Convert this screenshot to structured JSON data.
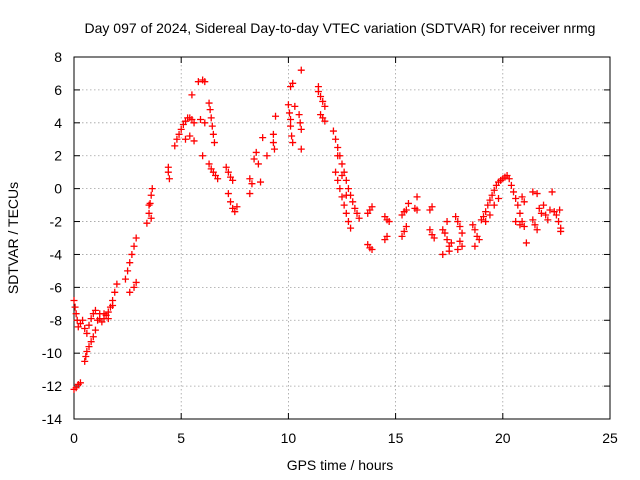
{
  "chart_data": {
    "type": "scatter",
    "title": "Day 097 of 2024, Sidereal Day-to-day VTEC variation (SDTVAR) for receiver nrmg",
    "xlabel": "GPS time / hours",
    "ylabel": "SDTVAR / TECUs",
    "xlim": [
      0,
      25
    ],
    "ylim": [
      -14,
      8
    ],
    "xticks": [
      0,
      5,
      10,
      15,
      20,
      25
    ],
    "yticks": [
      -14,
      -12,
      -10,
      -8,
      -6,
      -4,
      -2,
      0,
      2,
      4,
      6,
      8
    ],
    "grid": true,
    "marker": "+",
    "color": "#ff0000",
    "series": [
      {
        "name": "SDTVAR",
        "points": [
          [
            0.0,
            -12.2
          ],
          [
            0.1,
            -12.1
          ],
          [
            0.2,
            -11.9
          ],
          [
            0.3,
            -11.8
          ],
          [
            0.0,
            -6.8
          ],
          [
            0.05,
            -7.2
          ],
          [
            0.1,
            -7.6
          ],
          [
            0.15,
            -8.0
          ],
          [
            0.2,
            -8.4
          ],
          [
            0.3,
            -8.2
          ],
          [
            0.4,
            -8.0
          ],
          [
            0.5,
            -8.5
          ],
          [
            0.5,
            -10.5
          ],
          [
            0.55,
            -10.2
          ],
          [
            0.6,
            -9.9
          ],
          [
            0.7,
            -9.6
          ],
          [
            0.8,
            -9.3
          ],
          [
            0.9,
            -9.0
          ],
          [
            1.0,
            -8.6
          ],
          [
            0.6,
            -8.8
          ],
          [
            0.7,
            -8.3
          ],
          [
            0.8,
            -7.9
          ],
          [
            0.9,
            -7.6
          ],
          [
            1.0,
            -7.4
          ],
          [
            1.1,
            -8.0
          ],
          [
            1.2,
            -7.9
          ],
          [
            1.3,
            -8.1
          ],
          [
            1.4,
            -7.9
          ],
          [
            1.5,
            -7.7
          ],
          [
            1.6,
            -7.5
          ],
          [
            1.7,
            -7.2
          ],
          [
            1.8,
            -6.8
          ],
          [
            1.9,
            -6.3
          ],
          [
            2.0,
            -5.8
          ],
          [
            1.2,
            -7.6
          ],
          [
            1.4,
            -7.6
          ],
          [
            1.6,
            -7.9
          ],
          [
            1.8,
            -7.1
          ],
          [
            2.4,
            -5.5
          ],
          [
            2.5,
            -5.0
          ],
          [
            2.6,
            -4.5
          ],
          [
            2.7,
            -4.0
          ],
          [
            2.8,
            -3.5
          ],
          [
            2.9,
            -3.0
          ],
          [
            2.6,
            -6.3
          ],
          [
            2.8,
            -6.0
          ],
          [
            2.9,
            -5.7
          ],
          [
            3.4,
            -2.1
          ],
          [
            3.5,
            -1.5
          ],
          [
            3.55,
            -0.9
          ],
          [
            3.6,
            -0.4
          ],
          [
            3.65,
            0.0
          ],
          [
            3.5,
            -1.0
          ],
          [
            3.6,
            -1.8
          ],
          [
            4.4,
            1.3
          ],
          [
            4.45,
            0.6
          ],
          [
            4.4,
            1.0
          ],
          [
            4.7,
            2.6
          ],
          [
            4.8,
            3.0
          ],
          [
            4.9,
            3.3
          ],
          [
            5.0,
            3.6
          ],
          [
            5.1,
            3.9
          ],
          [
            5.2,
            4.1
          ],
          [
            5.3,
            4.3
          ],
          [
            5.4,
            4.3
          ],
          [
            5.5,
            4.2
          ],
          [
            5.6,
            4.0
          ],
          [
            5.2,
            3.0
          ],
          [
            5.4,
            3.2
          ],
          [
            5.6,
            2.9
          ],
          [
            5.5,
            5.7
          ],
          [
            5.8,
            6.5
          ],
          [
            6.0,
            6.6
          ],
          [
            6.1,
            6.5
          ],
          [
            5.9,
            4.2
          ],
          [
            6.1,
            4.0
          ],
          [
            6.0,
            2.0
          ],
          [
            6.3,
            5.2
          ],
          [
            6.35,
            4.8
          ],
          [
            6.4,
            4.3
          ],
          [
            6.45,
            3.8
          ],
          [
            6.5,
            3.3
          ],
          [
            6.55,
            2.8
          ],
          [
            6.3,
            1.5
          ],
          [
            6.4,
            1.2
          ],
          [
            6.5,
            1.0
          ],
          [
            6.6,
            0.8
          ],
          [
            6.7,
            0.6
          ],
          [
            7.1,
            1.3
          ],
          [
            7.2,
            1.0
          ],
          [
            7.3,
            0.7
          ],
          [
            7.4,
            0.5
          ],
          [
            7.2,
            -0.3
          ],
          [
            7.3,
            -0.8
          ],
          [
            7.4,
            -1.2
          ],
          [
            7.5,
            -1.4
          ],
          [
            7.6,
            -1.1
          ],
          [
            8.2,
            0.6
          ],
          [
            8.3,
            0.3
          ],
          [
            8.2,
            -0.3
          ],
          [
            8.4,
            1.8
          ],
          [
            8.5,
            2.2
          ],
          [
            8.6,
            1.5
          ],
          [
            8.7,
            0.4
          ],
          [
            8.8,
            3.1
          ],
          [
            9.0,
            2.0
          ],
          [
            9.3,
            3.3
          ],
          [
            9.3,
            2.8
          ],
          [
            9.35,
            2.4
          ],
          [
            9.4,
            4.4
          ],
          [
            10.0,
            5.1
          ],
          [
            10.05,
            4.6
          ],
          [
            10.1,
            4.2
          ],
          [
            10.1,
            3.8
          ],
          [
            10.15,
            3.2
          ],
          [
            10.2,
            2.8
          ],
          [
            10.1,
            6.2
          ],
          [
            10.2,
            6.4
          ],
          [
            10.3,
            5.0
          ],
          [
            10.6,
            7.2
          ],
          [
            10.5,
            4.5
          ],
          [
            10.55,
            4.0
          ],
          [
            10.6,
            3.6
          ],
          [
            10.6,
            2.4
          ],
          [
            11.4,
            5.9
          ],
          [
            11.5,
            5.6
          ],
          [
            11.6,
            5.3
          ],
          [
            11.7,
            5.0
          ],
          [
            11.5,
            4.5
          ],
          [
            11.6,
            4.3
          ],
          [
            11.7,
            4.1
          ],
          [
            11.4,
            6.2
          ],
          [
            12.1,
            3.5
          ],
          [
            12.2,
            3.0
          ],
          [
            12.3,
            2.5
          ],
          [
            12.4,
            2.0
          ],
          [
            12.5,
            1.5
          ],
          [
            12.6,
            1.0
          ],
          [
            12.7,
            0.5
          ],
          [
            12.8,
            0.0
          ],
          [
            12.9,
            -0.4
          ],
          [
            13.0,
            -0.8
          ],
          [
            13.1,
            -1.2
          ],
          [
            13.2,
            -1.5
          ],
          [
            13.3,
            -1.8
          ],
          [
            12.2,
            1.0
          ],
          [
            12.3,
            0.5
          ],
          [
            12.4,
            0.0
          ],
          [
            12.5,
            -0.5
          ],
          [
            12.6,
            -1.0
          ],
          [
            12.7,
            -1.5
          ],
          [
            12.8,
            -2.0
          ],
          [
            12.9,
            -2.4
          ],
          [
            12.3,
            2.0
          ],
          [
            12.5,
            0.8
          ],
          [
            12.7,
            -0.4
          ],
          [
            13.8,
            -1.3
          ],
          [
            13.9,
            -1.1
          ],
          [
            13.7,
            -1.5
          ],
          [
            13.8,
            -3.6
          ],
          [
            13.9,
            -3.7
          ],
          [
            13.7,
            -3.4
          ],
          [
            14.5,
            -1.7
          ],
          [
            14.6,
            -1.9
          ],
          [
            14.7,
            -2.0
          ],
          [
            14.5,
            -3.1
          ],
          [
            14.6,
            -2.9
          ],
          [
            15.3,
            -1.6
          ],
          [
            15.4,
            -1.4
          ],
          [
            15.5,
            -1.3
          ],
          [
            15.6,
            -0.9
          ],
          [
            15.5,
            -2.3
          ],
          [
            15.4,
            -2.6
          ],
          [
            15.3,
            -2.9
          ],
          [
            15.9,
            -1.2
          ],
          [
            16.0,
            -0.5
          ],
          [
            16.0,
            -1.3
          ],
          [
            16.6,
            -1.3
          ],
          [
            16.7,
            -1.1
          ],
          [
            16.6,
            -2.5
          ],
          [
            16.7,
            -2.8
          ],
          [
            16.8,
            -3.0
          ],
          [
            17.2,
            -2.5
          ],
          [
            17.3,
            -2.7
          ],
          [
            17.4,
            -3.1
          ],
          [
            17.5,
            -3.5
          ],
          [
            17.4,
            -2.0
          ],
          [
            17.6,
            -3.3
          ],
          [
            17.2,
            -4.0
          ],
          [
            17.5,
            -3.8
          ],
          [
            17.8,
            -1.7
          ],
          [
            17.9,
            -2.0
          ],
          [
            18.0,
            -2.3
          ],
          [
            18.1,
            -2.7
          ],
          [
            18.0,
            -3.2
          ],
          [
            18.1,
            -3.5
          ],
          [
            17.9,
            -3.7
          ],
          [
            18.6,
            -2.2
          ],
          [
            18.7,
            -2.5
          ],
          [
            18.8,
            -2.9
          ],
          [
            18.9,
            -3.1
          ],
          [
            18.7,
            -3.5
          ],
          [
            19.0,
            -1.9
          ],
          [
            19.1,
            -1.7
          ],
          [
            19.2,
            -1.4
          ],
          [
            19.3,
            -1.0
          ],
          [
            19.4,
            -0.7
          ],
          [
            19.5,
            -0.4
          ],
          [
            19.6,
            -0.1
          ],
          [
            19.7,
            0.2
          ],
          [
            19.8,
            0.4
          ],
          [
            19.9,
            0.5
          ],
          [
            20.0,
            0.6
          ],
          [
            20.1,
            0.7
          ],
          [
            20.2,
            0.8
          ],
          [
            19.2,
            -2.0
          ],
          [
            19.4,
            -1.6
          ],
          [
            19.6,
            -1.0
          ],
          [
            19.8,
            -0.6
          ],
          [
            20.3,
            0.6
          ],
          [
            20.4,
            0.2
          ],
          [
            20.5,
            -0.2
          ],
          [
            20.6,
            -0.6
          ],
          [
            20.7,
            -1.0
          ],
          [
            20.8,
            -1.5
          ],
          [
            20.9,
            -2.0
          ],
          [
            21.0,
            -2.3
          ],
          [
            20.6,
            -2.0
          ],
          [
            20.8,
            -2.2
          ],
          [
            20.9,
            -0.5
          ],
          [
            21.0,
            -0.8
          ],
          [
            21.1,
            -3.3
          ],
          [
            21.4,
            -1.9
          ],
          [
            21.5,
            -2.2
          ],
          [
            21.6,
            -2.5
          ],
          [
            21.4,
            -0.2
          ],
          [
            21.6,
            -0.3
          ],
          [
            21.7,
            -1.2
          ],
          [
            21.8,
            -1.5
          ],
          [
            21.9,
            -1.0
          ],
          [
            22.0,
            -1.6
          ],
          [
            22.1,
            -1.9
          ],
          [
            22.2,
            -1.3
          ],
          [
            22.3,
            -0.2
          ],
          [
            22.4,
            -1.4
          ],
          [
            22.5,
            -1.6
          ],
          [
            22.6,
            -2.0
          ],
          [
            22.7,
            -2.4
          ],
          [
            22.65,
            -1.3
          ],
          [
            22.7,
            -2.6
          ]
        ]
      }
    ]
  }
}
